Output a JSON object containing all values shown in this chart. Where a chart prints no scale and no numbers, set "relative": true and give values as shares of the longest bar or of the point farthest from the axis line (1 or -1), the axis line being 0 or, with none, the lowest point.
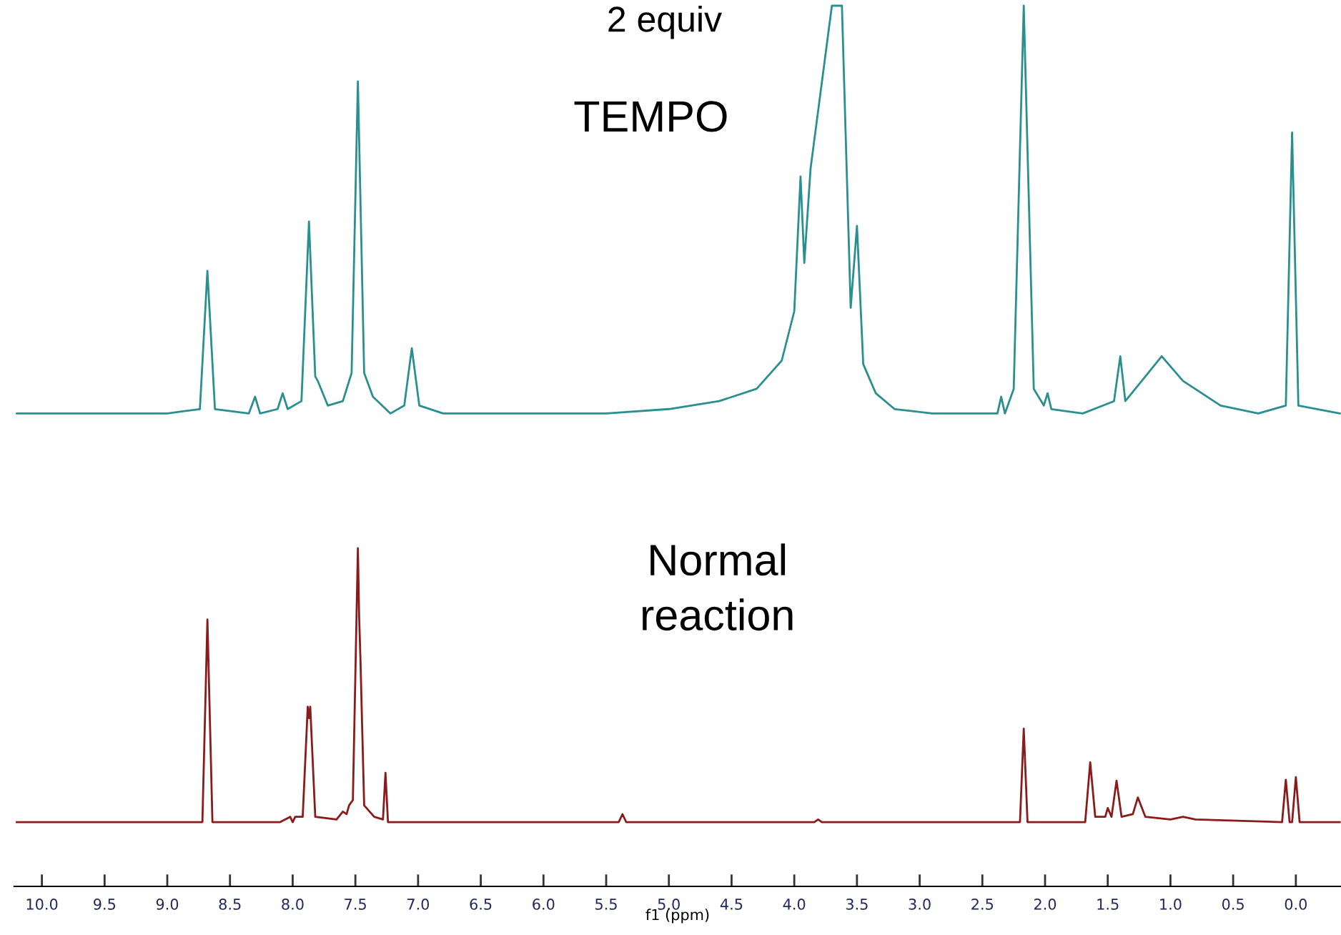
{
  "chart_data": {
    "type": "line",
    "relative": true,
    "xlim": [
      10.22,
      -0.36
    ],
    "xlabel": "f1 (ppm)",
    "annotations": [
      "2 equiv",
      "TEMPO",
      "Normal\nreaction"
    ],
    "xticks": [
      {
        "value": 10.0,
        "label": "10.0"
      },
      {
        "value": 9.5,
        "label": "9.5"
      },
      {
        "value": 9.0,
        "label": "9.0"
      },
      {
        "value": 8.5,
        "label": "8.5"
      },
      {
        "value": 8.0,
        "label": "8.0"
      },
      {
        "value": 7.5,
        "label": "7.5"
      },
      {
        "value": 7.0,
        "label": "7.0"
      },
      {
        "value": 6.5,
        "label": "6.5"
      },
      {
        "value": 6.0,
        "label": "6.0"
      },
      {
        "value": 5.5,
        "label": "5.5"
      },
      {
        "value": 5.0,
        "label": "5.0"
      },
      {
        "value": 4.5,
        "label": "4.5"
      },
      {
        "value": 4.0,
        "label": "4.0"
      },
      {
        "value": 3.5,
        "label": "3.5"
      },
      {
        "value": 3.0,
        "label": "3.0"
      },
      {
        "value": 2.5,
        "label": "2.5"
      },
      {
        "value": 2.0,
        "label": "2.0"
      },
      {
        "value": 1.5,
        "label": "1.5"
      },
      {
        "value": 1.0,
        "label": "1.0"
      },
      {
        "value": 0.5,
        "label": "0.5"
      },
      {
        "value": 0.0,
        "label": "0.0"
      }
    ],
    "series": [
      {
        "color": "#2a8f8f",
        "x": [
          10.2,
          9.0,
          8.74,
          8.68,
          8.62,
          8.35,
          8.3,
          8.26,
          8.12,
          8.08,
          8.04,
          7.93,
          7.87,
          7.82,
          7.8,
          7.72,
          7.6,
          7.53,
          7.48,
          7.43,
          7.36,
          7.22,
          7.11,
          7.05,
          6.99,
          6.8,
          5.5,
          5.0,
          4.6,
          4.3,
          4.1,
          4.0,
          3.95,
          3.92,
          3.87,
          3.7,
          3.62,
          3.55,
          3.5,
          3.45,
          3.35,
          3.2,
          2.9,
          2.5,
          2.38,
          2.35,
          2.32,
          2.25,
          2.17,
          2.09,
          2.01,
          1.98,
          1.95,
          1.7,
          1.45,
          1.4,
          1.36,
          1.2,
          1.07,
          0.9,
          0.6,
          0.3,
          0.08,
          0.03,
          -0.02,
          -0.35
        ],
        "values": [
          0.537,
          0.537,
          0.542,
          0.699,
          0.542,
          0.537,
          0.556,
          0.537,
          0.542,
          0.56,
          0.542,
          0.551,
          0.755,
          0.579,
          0.574,
          0.546,
          0.551,
          0.583,
          0.914,
          0.583,
          0.556,
          0.537,
          0.546,
          0.611,
          0.546,
          0.537,
          0.537,
          0.542,
          0.551,
          0.565,
          0.597,
          0.653,
          0.806,
          0.708,
          0.815,
          1.0,
          1.0,
          0.657,
          0.75,
          0.593,
          0.56,
          0.542,
          0.537,
          0.537,
          0.537,
          0.556,
          0.537,
          0.565,
          1.0,
          0.565,
          0.546,
          0.56,
          0.542,
          0.537,
          0.551,
          0.602,
          0.551,
          0.579,
          0.602,
          0.574,
          0.546,
          0.537,
          0.546,
          0.856,
          0.546,
          0.537
        ]
      },
      {
        "color": "#8b1a1a",
        "x": [
          10.2,
          8.72,
          8.68,
          8.64,
          8.1,
          8.02,
          8.0,
          7.98,
          7.92,
          7.88,
          7.87,
          7.86,
          7.82,
          7.65,
          7.6,
          7.57,
          7.55,
          7.52,
          7.48,
          7.47,
          7.46,
          7.43,
          7.35,
          7.28,
          7.26,
          7.24,
          6.0,
          5.4,
          5.37,
          5.34,
          3.84,
          3.81,
          3.78,
          2.2,
          2.17,
          2.14,
          1.68,
          1.64,
          1.6,
          1.52,
          1.5,
          1.47,
          1.43,
          1.39,
          1.3,
          1.26,
          1.2,
          1.0,
          0.9,
          0.8,
          0.11,
          0.08,
          0.05,
          0.03,
          0.0,
          -0.03,
          -0.35
        ],
        "values": [
          0.073,
          0.073,
          0.303,
          0.073,
          0.073,
          0.079,
          0.073,
          0.079,
          0.079,
          0.204,
          0.191,
          0.204,
          0.079,
          0.076,
          0.085,
          0.082,
          0.092,
          0.098,
          0.384,
          0.306,
          0.26,
          0.092,
          0.079,
          0.076,
          0.129,
          0.073,
          0.073,
          0.073,
          0.082,
          0.073,
          0.073,
          0.076,
          0.073,
          0.073,
          0.179,
          0.073,
          0.073,
          0.141,
          0.079,
          0.079,
          0.089,
          0.079,
          0.12,
          0.079,
          0.082,
          0.101,
          0.079,
          0.076,
          0.079,
          0.076,
          0.073,
          0.121,
          0.073,
          0.073,
          0.124,
          0.073,
          0.073
        ]
      }
    ]
  }
}
